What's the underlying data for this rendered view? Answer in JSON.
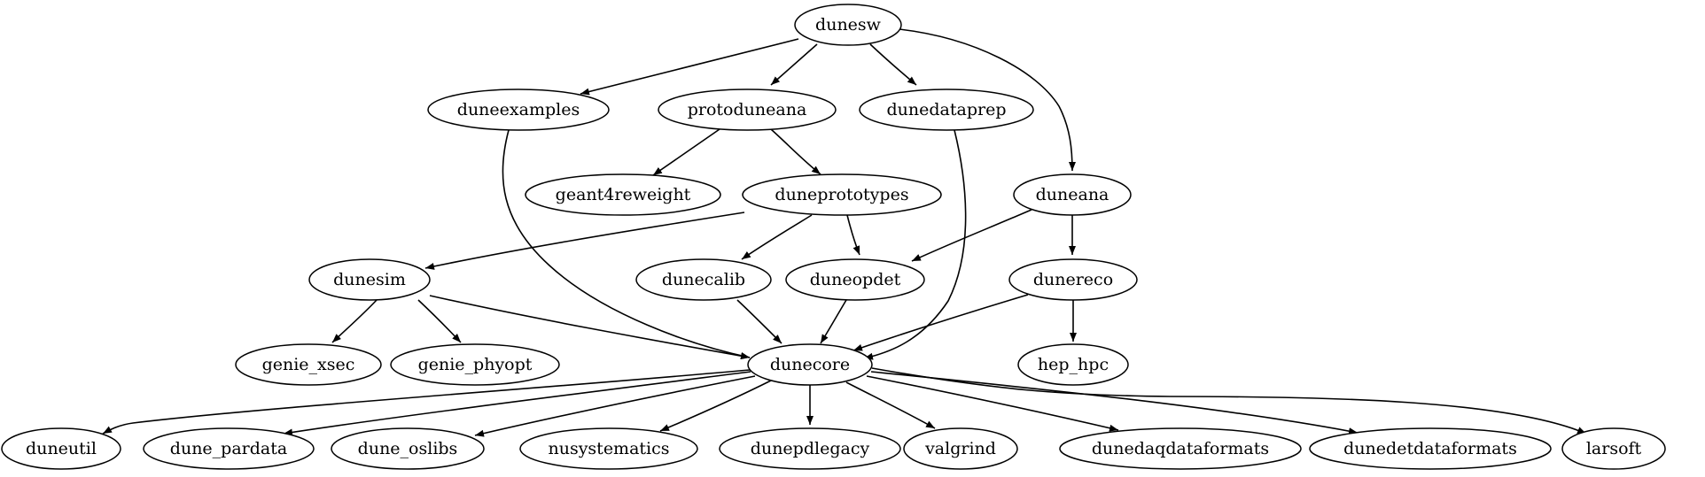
{
  "graph": {
    "nodes": [
      {
        "id": "dunesw",
        "label": "dunesw"
      },
      {
        "id": "duneexamples",
        "label": "duneexamples"
      },
      {
        "id": "protoduneana",
        "label": "protoduneana"
      },
      {
        "id": "dunedataprep",
        "label": "dunedataprep"
      },
      {
        "id": "geant4reweight",
        "label": "geant4reweight"
      },
      {
        "id": "duneprototypes",
        "label": "duneprototypes"
      },
      {
        "id": "duneana",
        "label": "duneana"
      },
      {
        "id": "dunesim",
        "label": "dunesim"
      },
      {
        "id": "dunecalib",
        "label": "dunecalib"
      },
      {
        "id": "duneopdet",
        "label": "duneopdet"
      },
      {
        "id": "dunereco",
        "label": "dunereco"
      },
      {
        "id": "genie_xsec",
        "label": "genie_xsec"
      },
      {
        "id": "genie_phyopt",
        "label": "genie_phyopt"
      },
      {
        "id": "dunecore",
        "label": "dunecore"
      },
      {
        "id": "hep_hpc",
        "label": "hep_hpc"
      },
      {
        "id": "duneutil",
        "label": "duneutil"
      },
      {
        "id": "dune_pardata",
        "label": "dune_pardata"
      },
      {
        "id": "dune_oslibs",
        "label": "dune_oslibs"
      },
      {
        "id": "nusystematics",
        "label": "nusystematics"
      },
      {
        "id": "dunepdlegacy",
        "label": "dunepdlegacy"
      },
      {
        "id": "valgrind",
        "label": "valgrind"
      },
      {
        "id": "dunedaqdataformats",
        "label": "dunedaqdataformats"
      },
      {
        "id": "dunedetdataformats",
        "label": "dunedetdataformats"
      },
      {
        "id": "larsoft",
        "label": "larsoft"
      }
    ],
    "edges": [
      {
        "from": "dunesw",
        "to": "duneexamples"
      },
      {
        "from": "dunesw",
        "to": "protoduneana"
      },
      {
        "from": "dunesw",
        "to": "dunedataprep"
      },
      {
        "from": "dunesw",
        "to": "duneana"
      },
      {
        "from": "duneexamples",
        "to": "dunecore"
      },
      {
        "from": "protoduneana",
        "to": "geant4reweight"
      },
      {
        "from": "protoduneana",
        "to": "duneprototypes"
      },
      {
        "from": "dunedataprep",
        "to": "dunecore"
      },
      {
        "from": "duneprototypes",
        "to": "dunesim"
      },
      {
        "from": "duneprototypes",
        "to": "dunecalib"
      },
      {
        "from": "duneprototypes",
        "to": "duneopdet"
      },
      {
        "from": "duneana",
        "to": "duneopdet"
      },
      {
        "from": "duneana",
        "to": "dunereco"
      },
      {
        "from": "dunesim",
        "to": "genie_xsec"
      },
      {
        "from": "dunesim",
        "to": "genie_phyopt"
      },
      {
        "from": "dunesim",
        "to": "dunecore"
      },
      {
        "from": "dunecalib",
        "to": "dunecore"
      },
      {
        "from": "duneopdet",
        "to": "dunecore"
      },
      {
        "from": "dunereco",
        "to": "dunecore"
      },
      {
        "from": "dunereco",
        "to": "hep_hpc"
      },
      {
        "from": "dunecore",
        "to": "duneutil"
      },
      {
        "from": "dunecore",
        "to": "dune_pardata"
      },
      {
        "from": "dunecore",
        "to": "dune_oslibs"
      },
      {
        "from": "dunecore",
        "to": "nusystematics"
      },
      {
        "from": "dunecore",
        "to": "dunepdlegacy"
      },
      {
        "from": "dunecore",
        "to": "valgrind"
      },
      {
        "from": "dunecore",
        "to": "dunedaqdataformats"
      },
      {
        "from": "dunecore",
        "to": "dunedetdataformats"
      },
      {
        "from": "dunecore",
        "to": "larsoft"
      }
    ]
  }
}
